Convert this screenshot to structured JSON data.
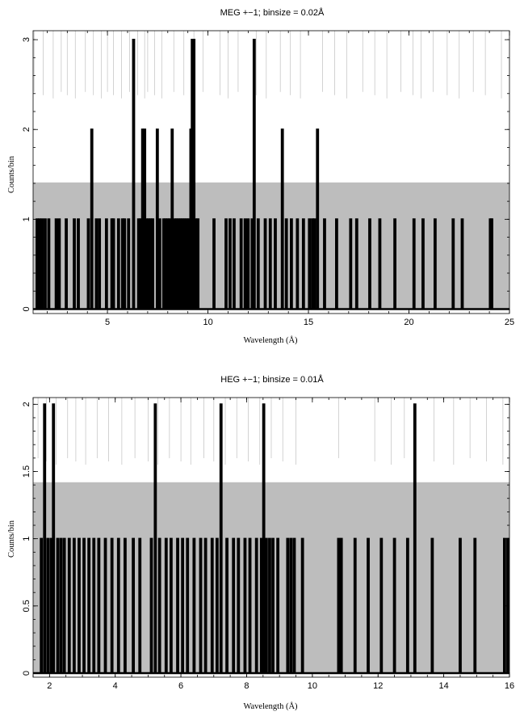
{
  "chart_data": [
    {
      "type": "line",
      "title": "MEG +−1; binsize = 0.02Å",
      "xlabel": "Wavelength (Å)",
      "ylabel": "Counts/bin",
      "xlim": [
        1.3,
        25
      ],
      "ylim": [
        -0.05,
        3.1
      ],
      "xticks": [
        5,
        10,
        15,
        20,
        25
      ],
      "yticks": [
        0,
        1,
        2,
        3
      ],
      "background_level": 1.41,
      "colors": {
        "counts": "#000000",
        "background": "#bdbdbd",
        "background_events": "#c8c8c8"
      },
      "series": [
        {
          "role": "counts",
          "peaks": [
            {
              "x": 1.5,
              "y": 1
            },
            {
              "x": 1.62,
              "y": 1
            },
            {
              "x": 1.75,
              "y": 1
            },
            {
              "x": 1.9,
              "y": 1
            },
            {
              "x": 2.08,
              "y": 1
            },
            {
              "x": 2.45,
              "y": 1
            },
            {
              "x": 2.6,
              "y": 1
            },
            {
              "x": 2.95,
              "y": 1
            },
            {
              "x": 3.35,
              "y": 1
            },
            {
              "x": 3.55,
              "y": 1
            },
            {
              "x": 4.05,
              "y": 1
            },
            {
              "x": 4.22,
              "y": 2
            },
            {
              "x": 4.45,
              "y": 1
            },
            {
              "x": 4.6,
              "y": 1
            },
            {
              "x": 4.95,
              "y": 1
            },
            {
              "x": 5.22,
              "y": 1
            },
            {
              "x": 5.3,
              "y": 1
            },
            {
              "x": 5.55,
              "y": 1
            },
            {
              "x": 5.75,
              "y": 1
            },
            {
              "x": 5.85,
              "y": 1
            },
            {
              "x": 6.05,
              "y": 1
            },
            {
              "x": 6.3,
              "y": 3
            },
            {
              "x": 6.55,
              "y": 1
            },
            {
              "x": 6.65,
              "y": 1
            },
            {
              "x": 6.75,
              "y": 2
            },
            {
              "x": 6.85,
              "y": 2
            },
            {
              "x": 6.95,
              "y": 1
            },
            {
              "x": 7.05,
              "y": 1
            },
            {
              "x": 7.15,
              "y": 1
            },
            {
              "x": 7.25,
              "y": 1
            },
            {
              "x": 7.48,
              "y": 2
            },
            {
              "x": 7.6,
              "y": 1
            },
            {
              "x": 7.8,
              "y": 1
            },
            {
              "x": 7.9,
              "y": 1
            },
            {
              "x": 8.0,
              "y": 1
            },
            {
              "x": 8.1,
              "y": 1
            },
            {
              "x": 8.22,
              "y": 2
            },
            {
              "x": 8.35,
              "y": 1
            },
            {
              "x": 8.45,
              "y": 1
            },
            {
              "x": 8.55,
              "y": 1
            },
            {
              "x": 8.65,
              "y": 1
            },
            {
              "x": 8.75,
              "y": 1
            },
            {
              "x": 8.85,
              "y": 1
            },
            {
              "x": 8.95,
              "y": 1
            },
            {
              "x": 9.05,
              "y": 1
            },
            {
              "x": 9.15,
              "y": 2
            },
            {
              "x": 9.22,
              "y": 3
            },
            {
              "x": 9.3,
              "y": 3
            },
            {
              "x": 9.4,
              "y": 1
            },
            {
              "x": 9.5,
              "y": 1
            },
            {
              "x": 10.3,
              "y": 1
            },
            {
              "x": 10.9,
              "y": 1
            },
            {
              "x": 11.1,
              "y": 1
            },
            {
              "x": 11.3,
              "y": 1
            },
            {
              "x": 11.65,
              "y": 1
            },
            {
              "x": 11.85,
              "y": 1
            },
            {
              "x": 12.0,
              "y": 1
            },
            {
              "x": 12.2,
              "y": 1
            },
            {
              "x": 12.3,
              "y": 3
            },
            {
              "x": 12.5,
              "y": 1
            },
            {
              "x": 12.85,
              "y": 1
            },
            {
              "x": 13.1,
              "y": 1
            },
            {
              "x": 13.35,
              "y": 1
            },
            {
              "x": 13.7,
              "y": 2
            },
            {
              "x": 13.9,
              "y": 1
            },
            {
              "x": 14.15,
              "y": 1
            },
            {
              "x": 14.45,
              "y": 1
            },
            {
              "x": 14.75,
              "y": 1
            },
            {
              "x": 15.05,
              "y": 1
            },
            {
              "x": 15.2,
              "y": 1
            },
            {
              "x": 15.3,
              "y": 1
            },
            {
              "x": 15.45,
              "y": 2
            },
            {
              "x": 15.8,
              "y": 1
            },
            {
              "x": 16.4,
              "y": 1
            },
            {
              "x": 17.1,
              "y": 1
            },
            {
              "x": 17.4,
              "y": 1
            },
            {
              "x": 18.05,
              "y": 1
            },
            {
              "x": 18.55,
              "y": 1
            },
            {
              "x": 19.3,
              "y": 1
            },
            {
              "x": 20.25,
              "y": 1
            },
            {
              "x": 20.7,
              "y": 1
            },
            {
              "x": 21.3,
              "y": 1
            },
            {
              "x": 22.2,
              "y": 1
            },
            {
              "x": 22.65,
              "y": 1
            },
            {
              "x": 24.05,
              "y": 1
            },
            {
              "x": 24.12,
              "y": 1
            }
          ]
        }
      ],
      "background_events": [
        1.35,
        1.8,
        2.3,
        2.7,
        3.0,
        3.4,
        3.9,
        4.3,
        4.7,
        5.0,
        5.3,
        5.7,
        6.1,
        6.5,
        6.85,
        7.0,
        7.35,
        7.7,
        8.3,
        8.8,
        9.3,
        9.75,
        10.6,
        11.0,
        11.5,
        12.4,
        12.9,
        13.6,
        14.1,
        14.6,
        15.7,
        16.3,
        16.9,
        17.7,
        18.3,
        18.9,
        19.6,
        20.2,
        20.6,
        21.2,
        21.9,
        22.5,
        23.2,
        23.8,
        24.6
      ]
    },
    {
      "type": "line",
      "title": "HEG +−1; binsize = 0.01Å",
      "xlabel": "Wavelength (Å)",
      "ylabel": "Counts/bin",
      "xlim": [
        1.5,
        16
      ],
      "ylim": [
        -0.03,
        2.05
      ],
      "xticks": [
        2,
        4,
        6,
        8,
        10,
        12,
        14,
        16
      ],
      "yticks": [
        0,
        0.5,
        1,
        1.5,
        2
      ],
      "background_level": 1.42,
      "colors": {
        "counts": "#000000",
        "background": "#bdbdbd",
        "background_events": "#c8c8c8"
      },
      "series": [
        {
          "role": "counts",
          "peaks": [
            {
              "x": 1.75,
              "y": 1
            },
            {
              "x": 1.85,
              "y": 2
            },
            {
              "x": 1.95,
              "y": 1
            },
            {
              "x": 2.05,
              "y": 1
            },
            {
              "x": 2.12,
              "y": 2
            },
            {
              "x": 2.25,
              "y": 1
            },
            {
              "x": 2.35,
              "y": 1
            },
            {
              "x": 2.45,
              "y": 1
            },
            {
              "x": 2.6,
              "y": 1
            },
            {
              "x": 2.75,
              "y": 1
            },
            {
              "x": 2.9,
              "y": 1
            },
            {
              "x": 3.05,
              "y": 1
            },
            {
              "x": 3.2,
              "y": 1
            },
            {
              "x": 3.35,
              "y": 1
            },
            {
              "x": 3.5,
              "y": 1
            },
            {
              "x": 3.7,
              "y": 1
            },
            {
              "x": 3.9,
              "y": 1
            },
            {
              "x": 4.1,
              "y": 1
            },
            {
              "x": 4.3,
              "y": 1
            },
            {
              "x": 4.55,
              "y": 1
            },
            {
              "x": 4.75,
              "y": 1
            },
            {
              "x": 5.1,
              "y": 1
            },
            {
              "x": 5.22,
              "y": 2
            },
            {
              "x": 5.35,
              "y": 1
            },
            {
              "x": 5.55,
              "y": 1
            },
            {
              "x": 5.7,
              "y": 1
            },
            {
              "x": 5.9,
              "y": 1
            },
            {
              "x": 6.05,
              "y": 1
            },
            {
              "x": 6.2,
              "y": 1
            },
            {
              "x": 6.4,
              "y": 1
            },
            {
              "x": 6.6,
              "y": 1
            },
            {
              "x": 6.75,
              "y": 1
            },
            {
              "x": 6.95,
              "y": 1
            },
            {
              "x": 7.1,
              "y": 1
            },
            {
              "x": 7.22,
              "y": 2
            },
            {
              "x": 7.4,
              "y": 1
            },
            {
              "x": 7.6,
              "y": 1
            },
            {
              "x": 7.75,
              "y": 1
            },
            {
              "x": 7.95,
              "y": 1
            },
            {
              "x": 8.1,
              "y": 1
            },
            {
              "x": 8.3,
              "y": 1
            },
            {
              "x": 8.45,
              "y": 1
            },
            {
              "x": 8.52,
              "y": 2
            },
            {
              "x": 8.6,
              "y": 1
            },
            {
              "x": 8.7,
              "y": 1
            },
            {
              "x": 8.8,
              "y": 1
            },
            {
              "x": 8.95,
              "y": 1
            },
            {
              "x": 9.25,
              "y": 1
            },
            {
              "x": 9.35,
              "y": 1
            },
            {
              "x": 9.45,
              "y": 1
            },
            {
              "x": 9.7,
              "y": 1
            },
            {
              "x": 10.8,
              "y": 1
            },
            {
              "x": 10.88,
              "y": 1
            },
            {
              "x": 11.3,
              "y": 1
            },
            {
              "x": 11.7,
              "y": 1
            },
            {
              "x": 12.1,
              "y": 1
            },
            {
              "x": 12.5,
              "y": 1
            },
            {
              "x": 12.9,
              "y": 1
            },
            {
              "x": 13.12,
              "y": 2
            },
            {
              "x": 13.65,
              "y": 1
            },
            {
              "x": 14.5,
              "y": 1
            },
            {
              "x": 14.95,
              "y": 1
            },
            {
              "x": 15.85,
              "y": 1
            },
            {
              "x": 15.95,
              "y": 1
            }
          ]
        }
      ],
      "background_events": [
        1.65,
        1.9,
        2.2,
        2.55,
        2.8,
        3.1,
        3.45,
        3.8,
        4.2,
        4.6,
        5.0,
        5.3,
        5.65,
        6.0,
        6.3,
        6.7,
        7.0,
        7.35,
        7.7,
        8.05,
        8.4,
        8.75,
        9.1,
        9.5,
        10.8,
        11.9,
        12.4,
        12.8,
        13.7,
        14.3,
        14.8,
        15.3,
        15.8
      ]
    }
  ]
}
